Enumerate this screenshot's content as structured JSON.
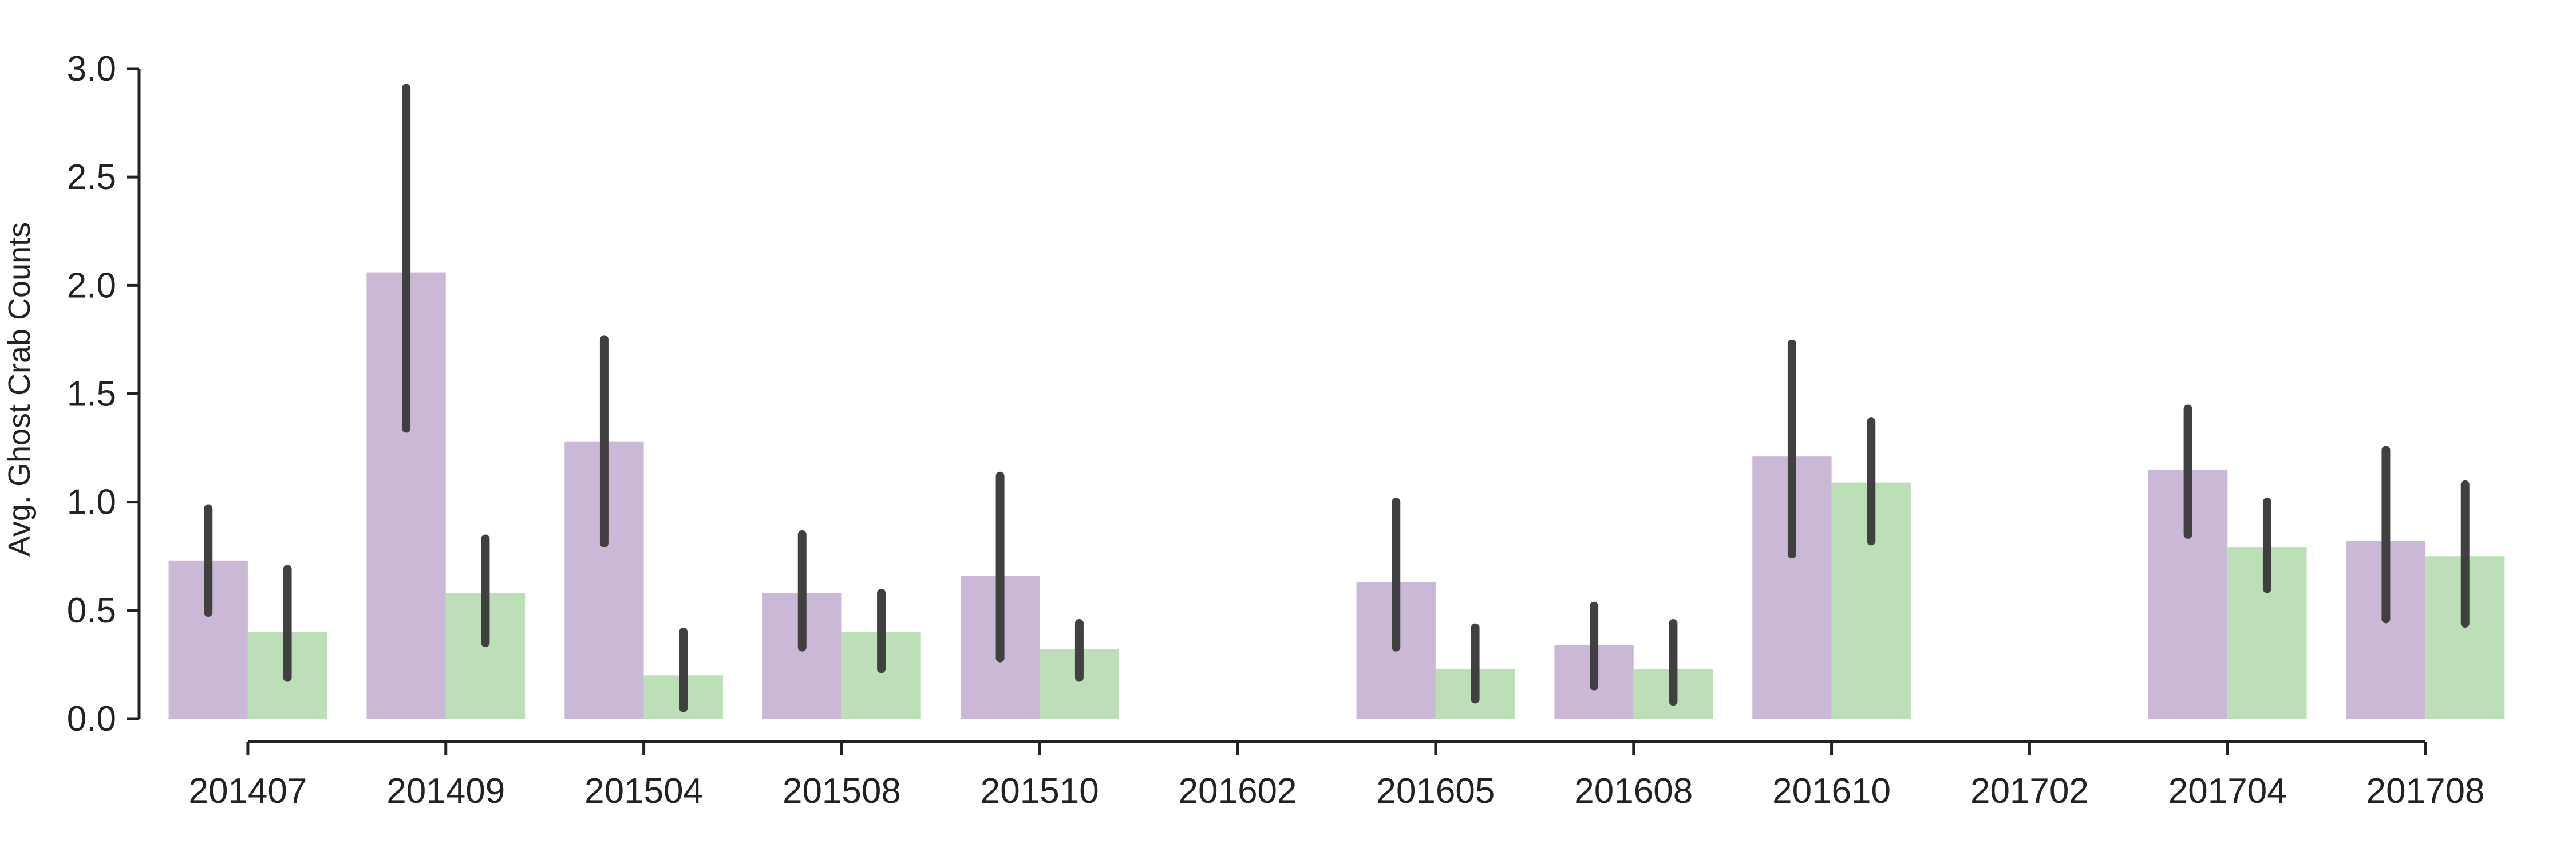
{
  "chart_data": {
    "type": "bar",
    "title": "",
    "xlabel": "",
    "ylabel": "Avg. Ghost Crab Counts",
    "ylim": [
      0,
      3.0
    ],
    "yticks": [
      "0.0",
      "0.5",
      "1.0",
      "1.5",
      "2.0",
      "2.5",
      "3.0"
    ],
    "grid": false,
    "categories": [
      "201407",
      "201409",
      "201504",
      "201508",
      "201510",
      "201602",
      "201605",
      "201608",
      "201610",
      "201702",
      "201704",
      "201708"
    ],
    "series": [
      {
        "color": "#cbb8d7",
        "values": [
          0.73,
          2.06,
          1.28,
          0.58,
          0.66,
          null,
          0.63,
          0.34,
          1.21,
          null,
          1.15,
          0.82
        ],
        "error_low": [
          0.49,
          1.34,
          0.81,
          0.33,
          0.28,
          null,
          0.33,
          0.15,
          0.76,
          null,
          0.85,
          0.46
        ],
        "error_high": [
          0.97,
          2.91,
          1.75,
          0.85,
          1.12,
          null,
          1.0,
          0.52,
          1.73,
          null,
          1.43,
          1.24
        ]
      },
      {
        "color": "#bcdfb8",
        "values": [
          0.4,
          0.58,
          0.2,
          0.4,
          0.32,
          null,
          0.23,
          0.23,
          1.09,
          null,
          0.79,
          0.75
        ],
        "error_low": [
          0.19,
          0.35,
          0.05,
          0.23,
          0.19,
          null,
          0.09,
          0.08,
          0.82,
          null,
          0.6,
          0.44
        ],
        "error_high": [
          0.69,
          0.83,
          0.4,
          0.58,
          0.44,
          null,
          0.42,
          0.44,
          1.37,
          null,
          1.0,
          1.08
        ]
      }
    ],
    "error_bar_color": "#404040"
  }
}
